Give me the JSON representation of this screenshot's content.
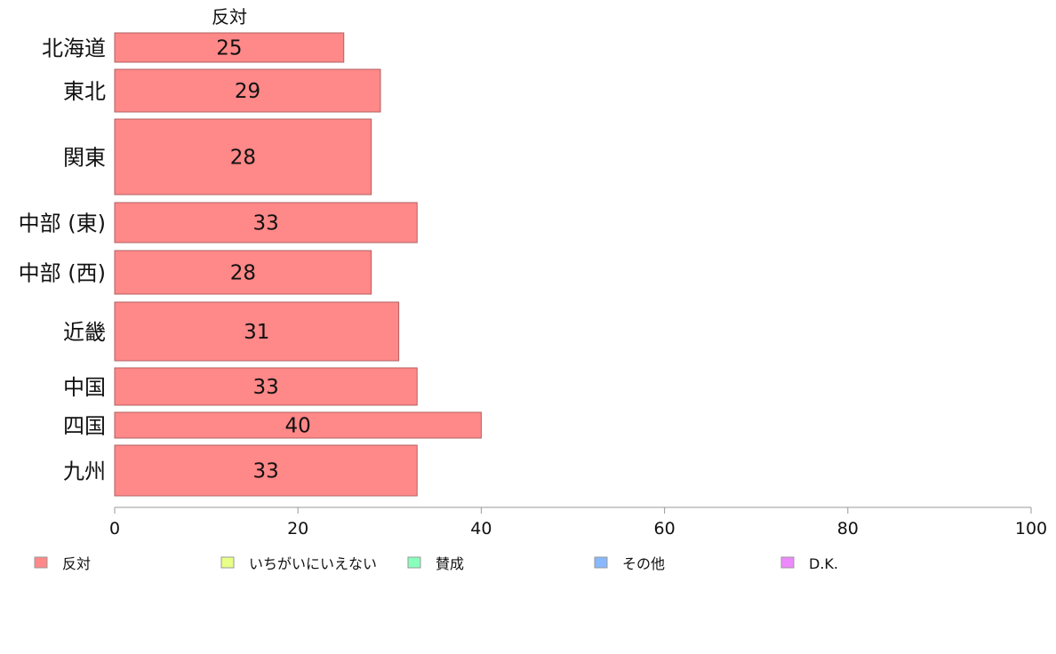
{
  "chart_data": {
    "type": "bar",
    "orientation": "horizontal",
    "title": "反対",
    "categories": [
      "北海道",
      "東北",
      "関東",
      "中部 (東)",
      "中部 (西)",
      "近畿",
      "中国",
      "四国",
      "九州"
    ],
    "series": [
      {
        "name": "反対",
        "values": [
          25,
          29,
          28,
          33,
          28,
          31,
          33,
          40,
          33
        ]
      }
    ],
    "data_labels": [
      "25",
      "29",
      "28",
      "33",
      "28",
      "31",
      "33",
      "40",
      "33"
    ],
    "xlim": [
      0,
      100
    ],
    "xticks": [
      0,
      20,
      40,
      60,
      80,
      100
    ],
    "xtick_labels": [
      "0",
      "20",
      "40",
      "60",
      "80",
      "100"
    ],
    "grid": false,
    "legend_position": "bottom",
    "legend": [
      {
        "label": "反対",
        "color": "#ff8888"
      },
      {
        "label": "いちがいにいえない",
        "color": "#e8ff88"
      },
      {
        "label": "賛成",
        "color": "#88ffbb"
      },
      {
        "label": "その他",
        "color": "#88b8ff"
      },
      {
        "label": "D.K.",
        "color": "#ee88ff"
      }
    ],
    "bar_color": "#ff8888",
    "bar_border_color": "#b06060"
  }
}
